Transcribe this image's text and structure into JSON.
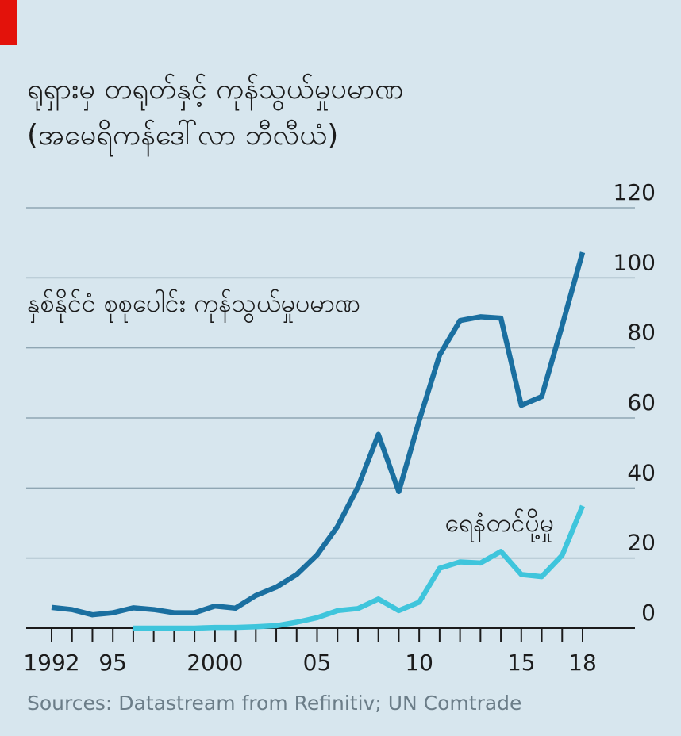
{
  "title_lines": [
    "ရုရှားမှ တရုတ်နှင့် ကုန်သွယ်မှုပမာဏ",
    "(အမေရိကန်ဒေါ်လာ ဘီလီယံ)"
  ],
  "source": "Sources: Datastream from Refinitiv; UN Comtrade",
  "colors": {
    "background": "#d7e6ee",
    "accent": "#e3120b",
    "total": "#1a6fa0",
    "russia": "#3fc5dc"
  },
  "chart_data": {
    "type": "line",
    "x": [
      1992,
      1993,
      1994,
      1995,
      1996,
      1997,
      1998,
      1999,
      2000,
      2001,
      2002,
      2003,
      2004,
      2005,
      2006,
      2007,
      2008,
      2009,
      2010,
      2011,
      2012,
      2013,
      2014,
      2015,
      2016,
      2017,
      2018
    ],
    "x_tick_values": [
      1992,
      1995,
      2000,
      2005,
      2010,
      2015,
      2018
    ],
    "x_tick_labels": [
      "1992",
      "95",
      "2000",
      "05",
      "10",
      "15",
      "18"
    ],
    "y_ticks": [
      0,
      20,
      40,
      60,
      80,
      100,
      120
    ],
    "ylim": [
      0,
      120
    ],
    "ylabel_position": "right",
    "series": [
      {
        "name": "နှစ်နိုင်ငံ စုစုပေါင်း ကုန်သွယ်မှုပမာဏ",
        "color": "#1a6fa0",
        "values": [
          5.9,
          5.3,
          3.8,
          4.4,
          5.8,
          5.3,
          4.4,
          4.4,
          6.3,
          5.7,
          9.3,
          11.7,
          15.3,
          20.9,
          29.0,
          40.3,
          55.3,
          39.0,
          59.3,
          78.0,
          87.8,
          88.9,
          88.5,
          63.6,
          66.1,
          86.4,
          107.3
        ]
      },
      {
        "name": "ရေနံတင်ပို့မှု",
        "color": "#3fc5dc",
        "x": [
          1996,
          1997,
          1998,
          1999,
          2000,
          2001,
          2002,
          2003,
          2004,
          2005,
          2006,
          2007,
          2008,
          2009,
          2010,
          2011,
          2012,
          2013,
          2014,
          2015,
          2016,
          2017,
          2018
        ],
        "values": [
          0.0,
          0.0,
          0.0,
          0.0,
          0.2,
          0.2,
          0.4,
          0.7,
          1.7,
          3.0,
          5.0,
          5.6,
          8.3,
          5.0,
          7.4,
          17.1,
          18.9,
          18.6,
          21.9,
          15.3,
          14.7,
          20.8,
          34.9
        ]
      }
    ]
  }
}
